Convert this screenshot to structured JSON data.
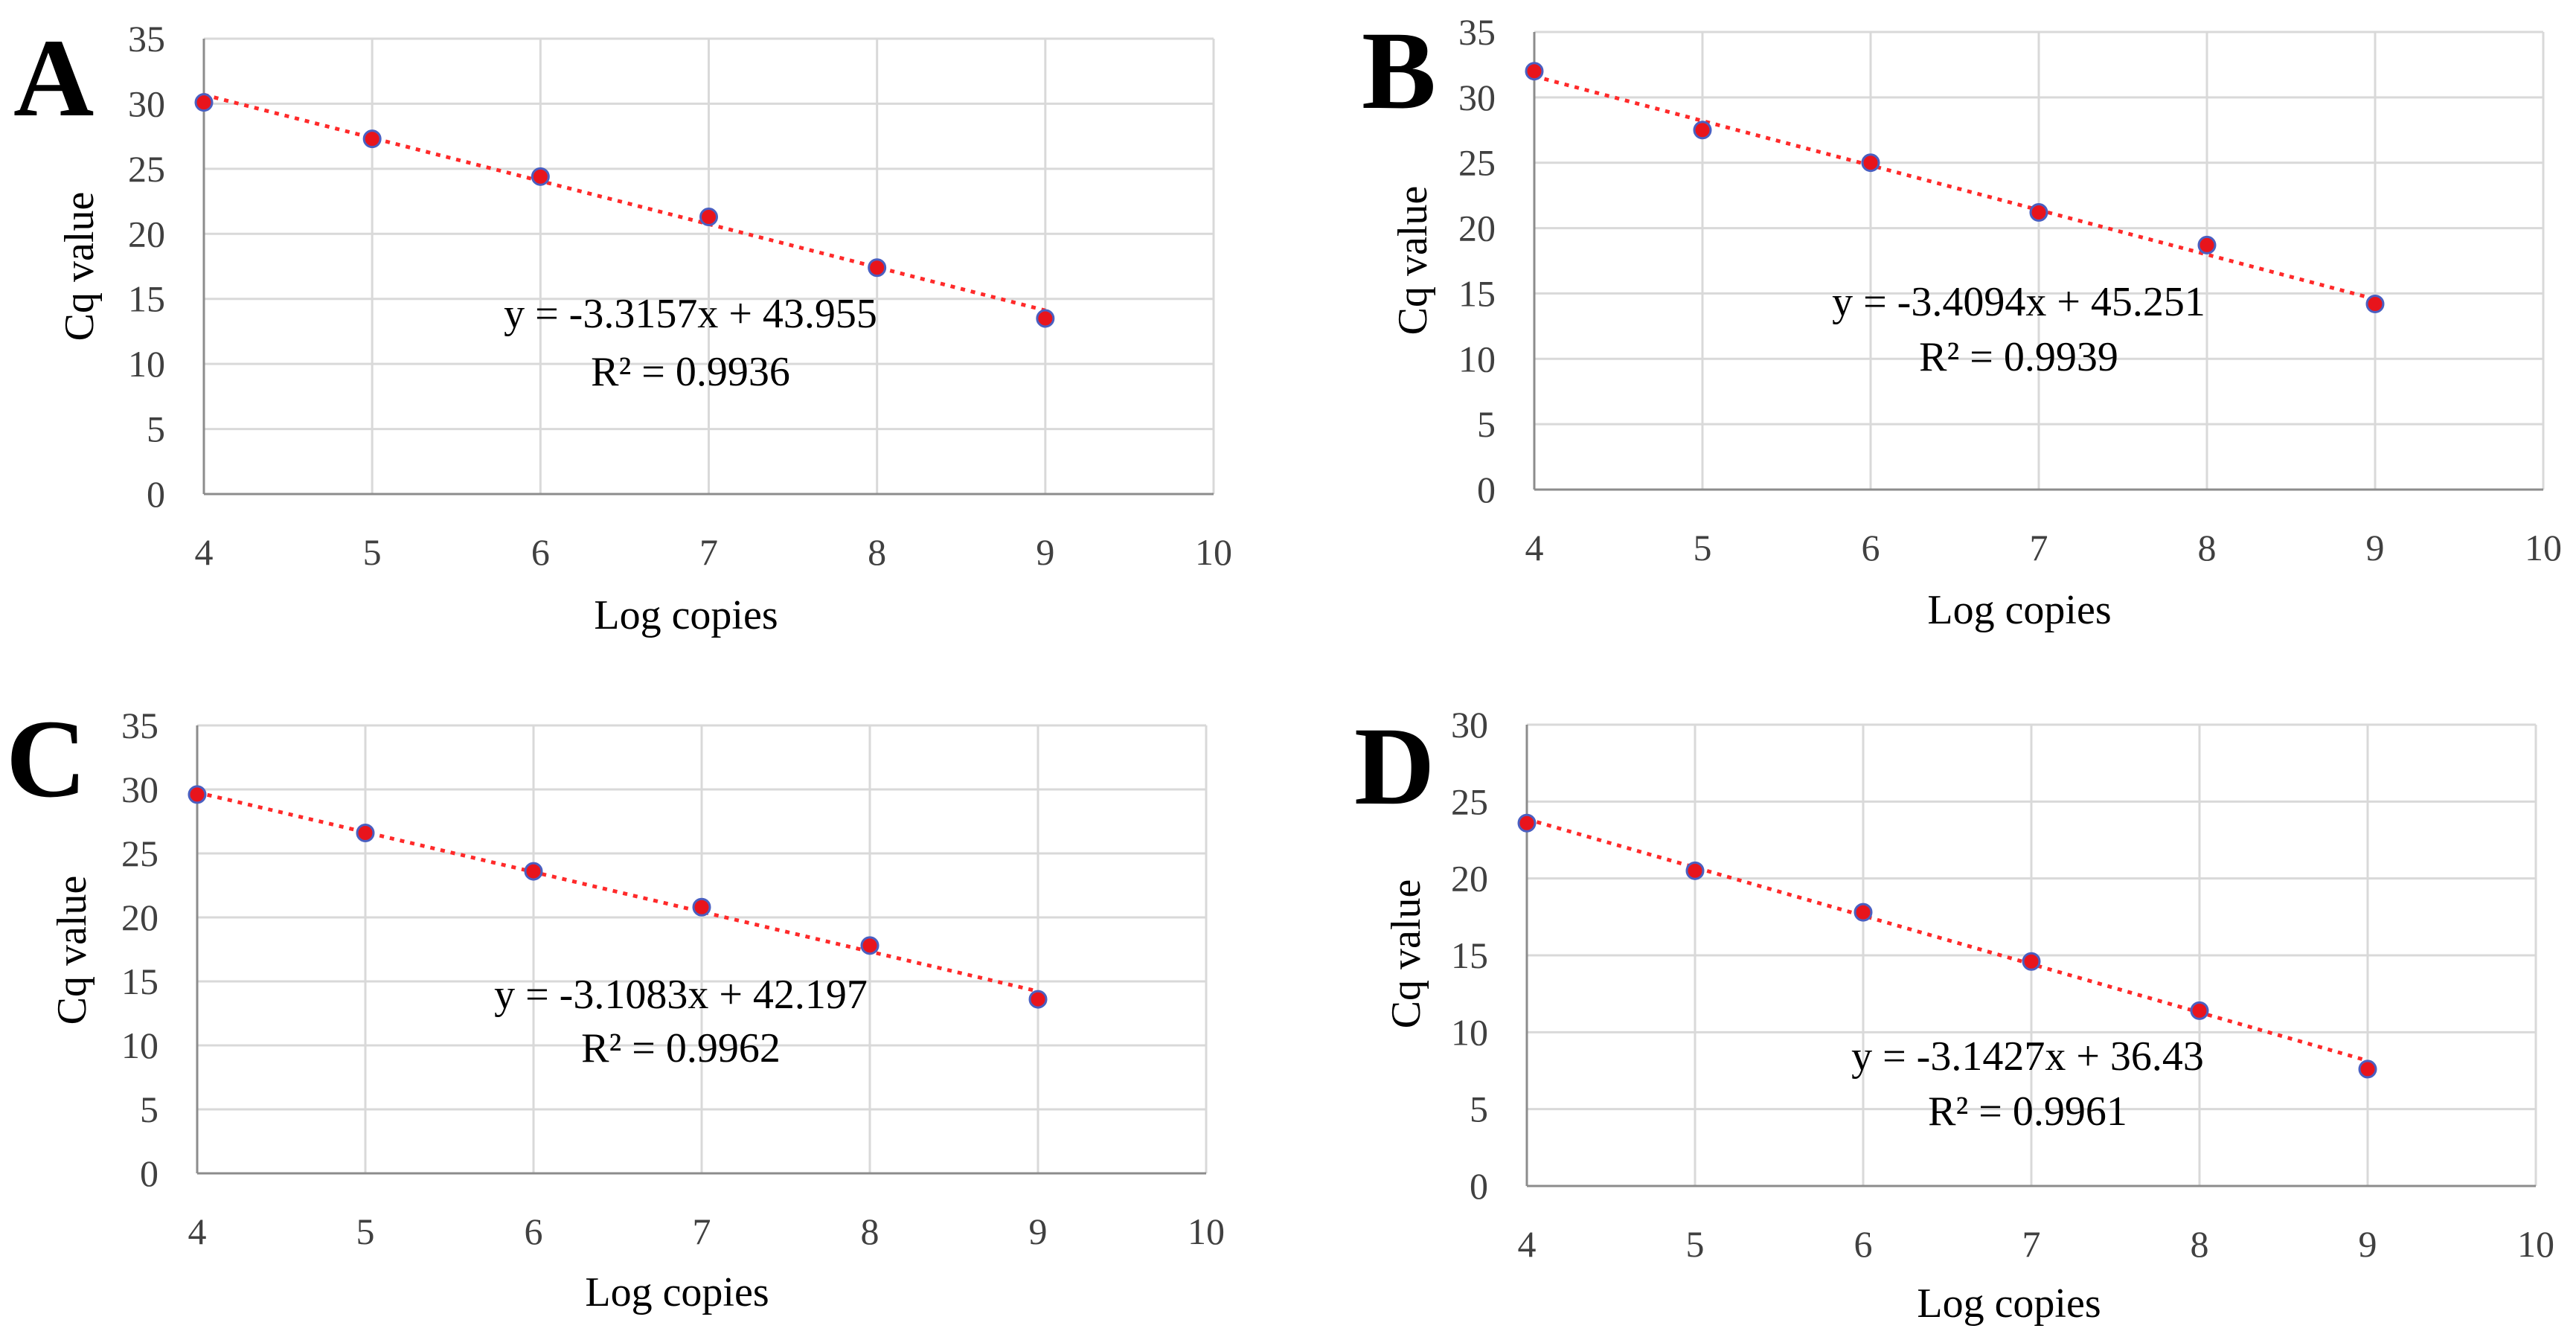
{
  "colors": {
    "marker_fill": "#e8141c",
    "marker_edge": "#4a5fc1",
    "trendline": "#ff2a2a",
    "grid": "#d9d9d9",
    "axis": "#8c8c8c"
  },
  "chart_data": [
    {
      "panel": "A",
      "type": "scatter",
      "xlabel": "Log copies",
      "ylabel": "Cq value",
      "x": [
        4,
        5,
        6,
        7,
        8,
        9
      ],
      "y": [
        30.1,
        27.3,
        24.4,
        21.3,
        17.4,
        13.5
      ],
      "xlim": [
        4,
        10
      ],
      "ylim": [
        0,
        35
      ],
      "xticks": [
        4,
        5,
        6,
        7,
        8,
        9,
        10
      ],
      "yticks": [
        0,
        5,
        10,
        15,
        20,
        25,
        30,
        35
      ],
      "trendline": {
        "slope": -3.3157,
        "intercept": 43.955,
        "style": "dotted"
      },
      "equation": "y = -3.3157x + 43.955",
      "r2": "R² = 0.9936",
      "grid": true
    },
    {
      "panel": "B",
      "type": "scatter",
      "xlabel": "Log copies",
      "ylabel": "Cq value",
      "x": [
        4,
        5,
        6,
        7,
        8,
        9
      ],
      "y": [
        32.0,
        27.5,
        25.0,
        21.2,
        18.7,
        14.2
      ],
      "xlim": [
        4,
        10
      ],
      "ylim": [
        0,
        35
      ],
      "xticks": [
        4,
        5,
        6,
        7,
        8,
        9,
        10
      ],
      "yticks": [
        0,
        5,
        10,
        15,
        20,
        25,
        30,
        35
      ],
      "trendline": {
        "slope": -3.4094,
        "intercept": 45.251,
        "style": "dotted"
      },
      "equation": "y = -3.4094x + 45.251",
      "r2": "R² = 0.9939",
      "grid": true
    },
    {
      "panel": "C",
      "type": "scatter",
      "xlabel": "Log copies",
      "ylabel": "Cq value",
      "x": [
        4,
        5,
        6,
        7,
        8,
        9
      ],
      "y": [
        29.6,
        26.6,
        23.6,
        20.8,
        17.8,
        13.6
      ],
      "xlim": [
        4,
        10
      ],
      "ylim": [
        0,
        35
      ],
      "xticks": [
        4,
        5,
        6,
        7,
        8,
        9,
        10
      ],
      "yticks": [
        0,
        5,
        10,
        15,
        20,
        25,
        30,
        35
      ],
      "trendline": {
        "slope": -3.1083,
        "intercept": 42.197,
        "style": "dotted"
      },
      "equation": "y = -3.1083x + 42.197",
      "r2": "R² = 0.9962",
      "grid": true
    },
    {
      "panel": "D",
      "type": "scatter",
      "xlabel": "Log copies",
      "ylabel": "Cq value",
      "x": [
        4,
        5,
        6,
        7,
        8,
        9
      ],
      "y": [
        23.6,
        20.5,
        17.8,
        14.6,
        11.4,
        7.6
      ],
      "xlim": [
        4,
        10
      ],
      "ylim": [
        0,
        30
      ],
      "xticks": [
        4,
        5,
        6,
        7,
        8,
        9,
        10
      ],
      "yticks": [
        0,
        5,
        10,
        15,
        20,
        25,
        30
      ],
      "trendline": {
        "slope": -3.1427,
        "intercept": 36.43,
        "style": "dotted"
      },
      "equation": "y = -3.1427x + 36.43",
      "r2": "R² = 0.9961",
      "grid": true
    }
  ]
}
